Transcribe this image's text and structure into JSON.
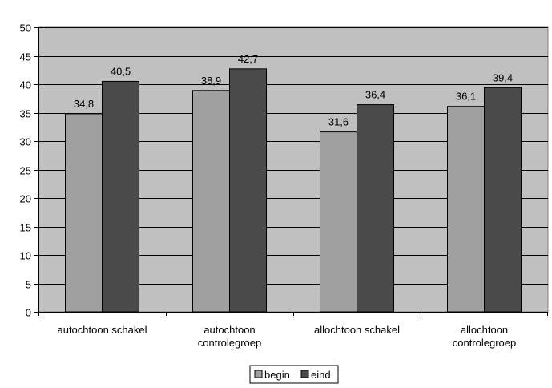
{
  "chart_data": {
    "type": "bar",
    "title": "",
    "xlabel": "",
    "ylabel": "",
    "categories": [
      [
        "autochtoon schakel"
      ],
      [
        "autochtoon",
        "controlegroep"
      ],
      [
        "allochtoon schakel"
      ],
      [
        "allochtoon",
        "controlegroep"
      ]
    ],
    "series": [
      {
        "name": "begin",
        "color": "#a0a0a0",
        "values": [
          34.8,
          38.9,
          31.6,
          36.1
        ],
        "labels": [
          "34,8",
          "38,9",
          "31,6",
          "36,1"
        ]
      },
      {
        "name": "eind",
        "color": "#4a4a4a",
        "values": [
          40.5,
          42.7,
          36.4,
          39.4
        ],
        "labels": [
          "40,5",
          "42,7",
          "36,4",
          "39,4"
        ]
      }
    ],
    "ylim": [
      0,
      50
    ],
    "yticks": [
      0,
      5,
      10,
      15,
      20,
      25,
      30,
      35,
      40,
      45,
      50
    ],
    "grid": true,
    "legend": "bottom",
    "plot_background": "#c0c0c0"
  }
}
